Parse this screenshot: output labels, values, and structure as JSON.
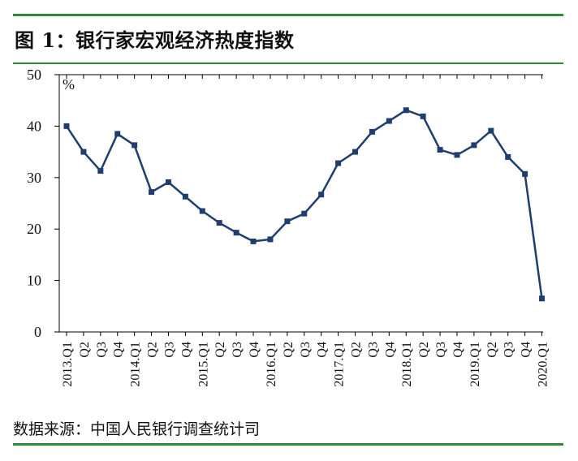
{
  "title": "图 1：银行家宏观经济热度指数",
  "source": "数据来源：中国人民银行调查统计司",
  "chart_data": {
    "type": "line",
    "title": "银行家宏观经济热度指数",
    "ylabel": "%",
    "ylim": [
      0,
      50
    ],
    "yticks": [
      0,
      10,
      20,
      30,
      40,
      50
    ],
    "grid": false,
    "line_color": "#1f3d6e",
    "categories": [
      "2013.Q1",
      "Q2",
      "Q3",
      "Q4",
      "2014.Q1",
      "Q2",
      "Q3",
      "Q4",
      "2015.Q1",
      "Q2",
      "Q3",
      "Q4",
      "2016.Q1",
      "Q2",
      "Q3",
      "Q4",
      "2017.Q1",
      "Q2",
      "Q3",
      "Q4",
      "2018.Q1",
      "Q2",
      "Q3",
      "Q4",
      "2019.Q1",
      "Q2",
      "Q3",
      "Q4",
      "2020.Q1"
    ],
    "series": [
      {
        "values": [
          40.0,
          35.0,
          31.3,
          38.5,
          36.3,
          27.2,
          29.1,
          26.3,
          23.5,
          21.2,
          19.3,
          17.6,
          18.0,
          21.5,
          23.0,
          26.7,
          32.8,
          35.0,
          38.9,
          41.0,
          43.1,
          41.9,
          35.4,
          34.4,
          36.3,
          39.1,
          34.0,
          30.7,
          6.5
        ]
      }
    ]
  }
}
